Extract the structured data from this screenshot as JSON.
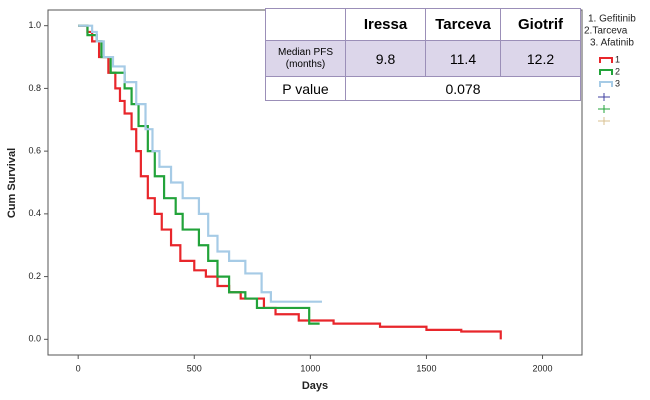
{
  "chart_data": {
    "type": "step",
    "x_label": "Days",
    "y_label": "Cum Survival",
    "xlim": [
      -130,
      2170
    ],
    "ylim": [
      -0.05,
      1.05
    ],
    "xticks": [
      0,
      500,
      1000,
      1500,
      2000
    ],
    "yticks": [
      {
        "value": 0,
        "label": "0.0"
      },
      0.2,
      0.4,
      0.6,
      0.8,
      {
        "value": 1,
        "label": "1.0"
      }
    ],
    "legend_notes": [
      "1. Gefitinib",
      "2.Tarceva",
      "3. Afatinib"
    ],
    "series": [
      {
        "name": "1",
        "color": "#e8262b",
        "x": [
          0,
          40,
          60,
          90,
          130,
          160,
          180,
          200,
          230,
          250,
          270,
          300,
          330,
          360,
          400,
          440,
          500,
          550,
          600,
          650,
          700,
          800,
          850,
          950,
          1100,
          1300,
          1500,
          1650,
          1820
        ],
        "values": [
          1,
          0.98,
          0.95,
          0.9,
          0.85,
          0.8,
          0.76,
          0.72,
          0.67,
          0.6,
          0.52,
          0.45,
          0.4,
          0.35,
          0.3,
          0.25,
          0.22,
          0.2,
          0.17,
          0.15,
          0.13,
          0.1,
          0.08,
          0.06,
          0.05,
          0.04,
          0.03,
          0.025,
          0
        ]
      },
      {
        "name": "2",
        "color": "#22a33a",
        "x": [
          0,
          40,
          80,
          100,
          140,
          200,
          230,
          260,
          300,
          330,
          370,
          420,
          450,
          520,
          560,
          600,
          650,
          720,
          770,
          995,
          1040
        ],
        "values": [
          1,
          0.97,
          0.95,
          0.9,
          0.85,
          0.8,
          0.75,
          0.68,
          0.6,
          0.52,
          0.45,
          0.4,
          0.35,
          0.3,
          0.25,
          0.2,
          0.15,
          0.13,
          0.1,
          0.05,
          0.05
        ]
      },
      {
        "name": "3",
        "color": "#a6cbe6",
        "x": [
          0,
          60,
          80,
          110,
          150,
          200,
          250,
          290,
          320,
          350,
          400,
          450,
          520,
          560,
          600,
          650,
          720,
          790,
          830,
          1050
        ],
        "values": [
          1,
          0.98,
          0.95,
          0.9,
          0.87,
          0.82,
          0.75,
          0.67,
          0.6,
          0.55,
          0.5,
          0.45,
          0.4,
          0.33,
          0.28,
          0.25,
          0.21,
          0.15,
          0.12,
          0.12
        ]
      }
    ]
  },
  "table": {
    "header": [
      "Iressa",
      "Tarceva",
      "Giotrif"
    ],
    "rows": [
      {
        "label": "Median PFS (months)",
        "values": [
          9.8,
          11.4,
          12.2
        ]
      },
      {
        "label": "P value",
        "value": 0.078
      }
    ]
  }
}
